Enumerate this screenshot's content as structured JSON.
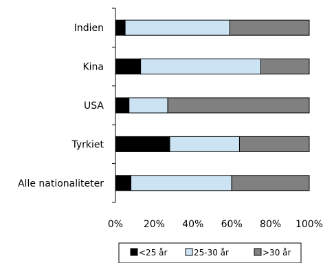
{
  "chart_data": {
    "type": "bar",
    "orientation": "horizontal",
    "stacked": true,
    "categories": [
      "Indien",
      "Kina",
      "USA",
      "Tyrkiet",
      "Alle nationaliteter"
    ],
    "series": [
      {
        "name": "<25 år",
        "values": [
          5,
          13,
          7,
          28,
          8
        ],
        "color": "#000000"
      },
      {
        "name": "25-30 år",
        "values": [
          54,
          62,
          20,
          36,
          52
        ],
        "color": "#cce3f3"
      },
      {
        "name": ">30 år",
        "values": [
          41,
          25,
          73,
          36,
          40
        ],
        "color": "#808080"
      }
    ],
    "xlim": [
      0,
      100
    ],
    "x_ticks": [
      "0%",
      "20%",
      "40%",
      "60%",
      "80%",
      "100%"
    ],
    "grid": false,
    "legend_position": "bottom"
  }
}
